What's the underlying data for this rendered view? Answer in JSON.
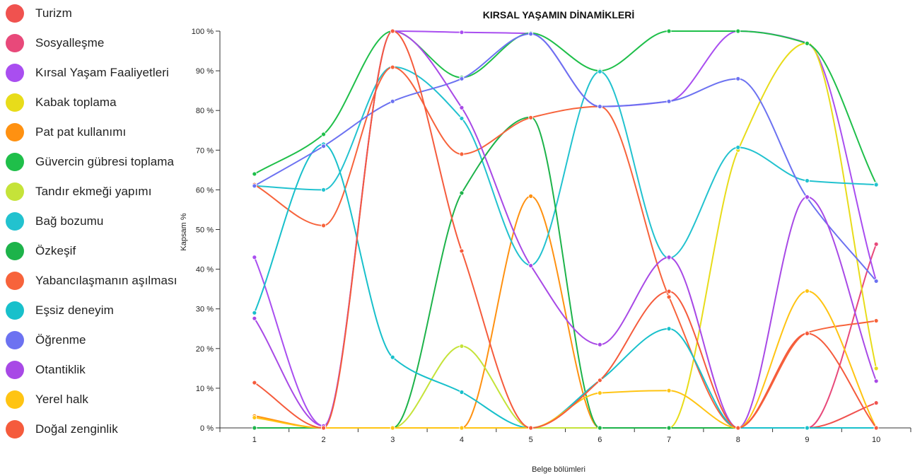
{
  "chart_data": {
    "type": "line",
    "title": "KIRSAL YAŞAMIN DİNAMİKLERİ",
    "xlabel": "Belge bölümleri",
    "ylabel": "Kapsam %",
    "categories": [
      "1",
      "2",
      "3",
      "4",
      "5",
      "6",
      "7",
      "8",
      "9",
      "10"
    ],
    "y_ticks": [
      "0 %",
      "10 %",
      "20 %",
      "30 %",
      "40 %",
      "50 %",
      "60 %",
      "70 %",
      "80 %",
      "90 %",
      "100 %"
    ],
    "ylim": [
      0,
      100
    ],
    "grid": false,
    "legend_position": "left",
    "series": [
      {
        "name": "Turizm",
        "color": "#f0524f",
        "values": [
          0,
          0,
          0,
          0,
          0,
          0,
          0,
          0,
          0,
          6.3
        ]
      },
      {
        "name": "Sosyalleşme",
        "color": "#e8497a",
        "values": [
          0,
          0,
          0,
          0,
          0,
          0,
          0,
          0,
          0,
          46.3
        ]
      },
      {
        "name": "Kırsal Yaşam Faaliyetleri",
        "color": "#a94ef0",
        "values": [
          43,
          0.5,
          100,
          99.7,
          99.4,
          81,
          82.3,
          100,
          97,
          37
        ]
      },
      {
        "name": "Kabak toplama",
        "color": "#e8dc1a",
        "values": [
          0,
          0,
          0,
          0,
          0,
          0,
          0,
          70,
          97,
          15
        ]
      },
      {
        "name": "Pat pat kullanımı",
        "color": "#ff9111",
        "values": [
          3,
          0,
          0,
          0,
          58.4,
          0,
          0,
          0,
          0,
          0
        ]
      },
      {
        "name": "Güvercin gübresi toplama",
        "color": "#1fbf4a",
        "values": [
          64,
          74,
          100,
          88.3,
          99.5,
          90,
          100,
          100,
          96.9,
          61.5
        ]
      },
      {
        "name": "Tandır ekmeği yapımı",
        "color": "#c5e339",
        "values": [
          0,
          0,
          0,
          20.6,
          0,
          0,
          0,
          0,
          0,
          0
        ]
      },
      {
        "name": "Bağ bozumu",
        "color": "#22c2cf",
        "values": [
          61,
          60,
          91,
          78,
          41,
          89.8,
          42.8,
          70.7,
          62.3,
          61.3
        ]
      },
      {
        "name": "Özkeşif",
        "color": "#1db34a",
        "values": [
          0,
          0,
          0,
          59.2,
          78.3,
          0,
          0,
          0,
          0,
          0
        ]
      },
      {
        "name": "Yabancılaşmanın aşılması",
        "color": "#f7633b",
        "values": [
          61.3,
          51,
          90.9,
          69,
          78.2,
          81,
          33,
          0,
          24,
          27
        ]
      },
      {
        "name": "Eşsiz deneyim",
        "color": "#18c0cb",
        "values": [
          29,
          71.5,
          17.8,
          9,
          0,
          12,
          25,
          0,
          0,
          0
        ]
      },
      {
        "name": "Öğrenme",
        "color": "#6c72f1",
        "values": [
          61,
          71,
          82.3,
          88,
          99.3,
          81,
          82.3,
          88,
          58,
          37
        ]
      },
      {
        "name": "Otantiklik",
        "color": "#a849e6",
        "values": [
          27.6,
          0.5,
          100,
          80.7,
          40.9,
          21,
          43,
          0,
          58.2,
          11.8
        ]
      },
      {
        "name": "Yerel halk",
        "color": "#ffc413",
        "values": [
          2.6,
          0,
          0,
          0,
          0,
          8.8,
          9.4,
          0,
          34.5,
          0
        ]
      },
      {
        "name": "Doğal zenginlik",
        "color": "#f55b3c",
        "values": [
          11.4,
          0,
          100,
          44.6,
          0,
          12,
          34.4,
          0,
          23.8,
          0
        ]
      }
    ]
  }
}
